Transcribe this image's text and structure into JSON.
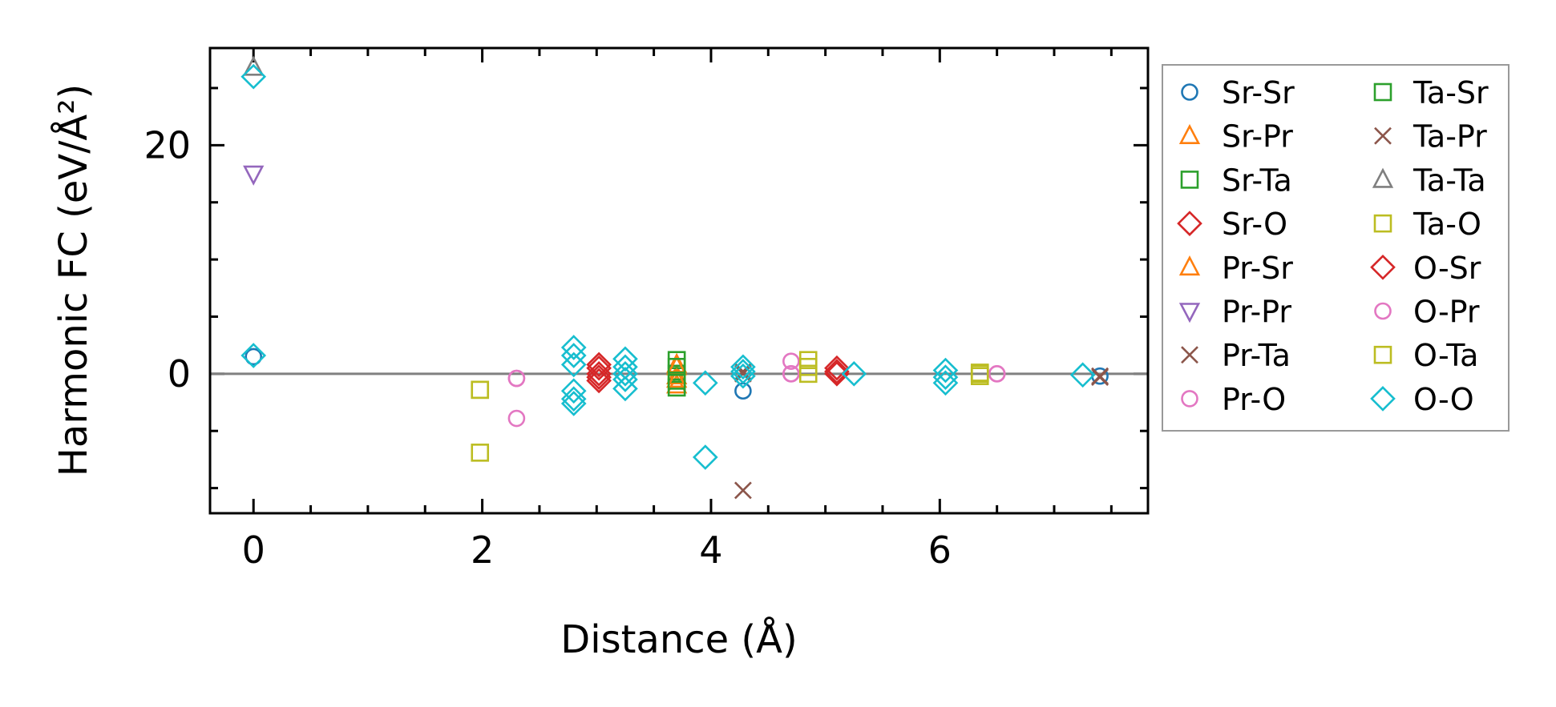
{
  "chart_data": {
    "type": "scatter",
    "title": "",
    "xlabel": "Distance (Å)",
    "ylabel": "Harmonic FC (eV/Å²)",
    "xlim": [
      -0.38,
      7.82
    ],
    "ylim": [
      -12.2,
      28.5
    ],
    "xticks": [
      0,
      2,
      4,
      6
    ],
    "xtick_labels": [
      "0",
      "2",
      "4",
      "6"
    ],
    "yticks": [
      0,
      20
    ],
    "ytick_labels": [
      "0",
      "20"
    ],
    "x_minor_step": 0.5,
    "y_minor_step": 5,
    "zero_line": true,
    "grid": false,
    "legend_position": "outside-right",
    "series": [
      {
        "name": "Sr-Sr",
        "color": "#1f77b4",
        "marker": "circle",
        "x": [
          0,
          4.28,
          7.4
        ],
        "y": [
          1.5,
          -1.5,
          -0.2
        ]
      },
      {
        "name": "Sr-Pr",
        "color": "#ff7f0e",
        "marker": "triangle-up",
        "x": [
          3.7,
          3.7,
          3.7
        ],
        "y": [
          0.8,
          -0.2,
          -1.0
        ]
      },
      {
        "name": "Sr-Ta",
        "color": "#2ca02c",
        "marker": "square",
        "x": [
          3.7,
          3.7,
          3.7
        ],
        "y": [
          1.2,
          0.0,
          -1.2
        ]
      },
      {
        "name": "Sr-O",
        "color": "#d62728",
        "marker": "diamond",
        "x": [
          3.02,
          3.02,
          3.02,
          5.1,
          5.1
        ],
        "y": [
          0.8,
          0.0,
          -0.6,
          0.5,
          0.0
        ]
      },
      {
        "name": "Pr-Sr",
        "color": "#ff7f0e",
        "marker": "triangle-up",
        "x": [
          3.7,
          3.7
        ],
        "y": [
          0.6,
          -0.5
        ]
      },
      {
        "name": "Pr-Pr",
        "color": "#9467bd",
        "marker": "triangle-down",
        "x": [
          0
        ],
        "y": [
          17.5
        ]
      },
      {
        "name": "Pr-Ta",
        "color": "#8c564b",
        "marker": "x",
        "x": [
          4.28,
          4.28,
          7.4
        ],
        "y": [
          -10.2,
          0.2,
          -0.3
        ]
      },
      {
        "name": "Pr-O",
        "color": "#e377c2",
        "marker": "circle",
        "x": [
          2.3,
          2.3,
          4.7,
          4.7,
          6.5
        ],
        "y": [
          -0.4,
          -3.9,
          1.1,
          0.0,
          0.0
        ]
      },
      {
        "name": "Ta-Sr",
        "color": "#2ca02c",
        "marker": "square",
        "x": [
          3.7,
          3.7
        ],
        "y": [
          0.6,
          -0.6
        ]
      },
      {
        "name": "Ta-Pr",
        "color": "#8c564b",
        "marker": "x",
        "x": [
          4.28,
          7.4
        ],
        "y": [
          0.0,
          -0.2
        ]
      },
      {
        "name": "Ta-Ta",
        "color": "#7f7f7f",
        "marker": "triangle-up",
        "x": [
          0
        ],
        "y": [
          26.8
        ]
      },
      {
        "name": "Ta-O",
        "color": "#bcbd22",
        "marker": "square",
        "x": [
          1.98,
          1.98,
          4.85,
          4.85,
          6.35,
          6.35
        ],
        "y": [
          -1.4,
          -6.9,
          1.2,
          0.0,
          0.1,
          -0.2
        ]
      },
      {
        "name": "O-Sr",
        "color": "#d62728",
        "marker": "diamond",
        "x": [
          3.02,
          3.02,
          5.1
        ],
        "y": [
          0.5,
          -0.3,
          0.2
        ]
      },
      {
        "name": "O-Pr",
        "color": "#e377c2",
        "marker": "circle",
        "x": [
          2.3,
          4.7,
          6.5
        ],
        "y": [
          -0.4,
          0.0,
          0.0
        ]
      },
      {
        "name": "O-Ta",
        "color": "#bcbd22",
        "marker": "square",
        "x": [
          1.98,
          4.85,
          6.35
        ],
        "y": [
          -1.4,
          0.6,
          0.0
        ]
      },
      {
        "name": "O-O",
        "color": "#17becf",
        "marker": "diamond",
        "x": [
          0,
          0,
          2.8,
          2.8,
          2.8,
          2.8,
          2.8,
          2.8,
          3.25,
          3.25,
          3.25,
          3.25,
          3.25,
          3.95,
          3.95,
          4.28,
          4.28,
          4.28,
          5.25,
          6.05,
          6.05,
          6.05,
          7.25
        ],
        "y": [
          26.0,
          1.6,
          2.3,
          1.6,
          0.8,
          -1.5,
          -2.2,
          -2.6,
          1.3,
          0.6,
          0.0,
          -0.5,
          -1.3,
          -0.8,
          -7.3,
          0.6,
          0.2,
          -0.2,
          0.0,
          0.3,
          -0.3,
          -0.8,
          -0.1
        ]
      }
    ]
  }
}
